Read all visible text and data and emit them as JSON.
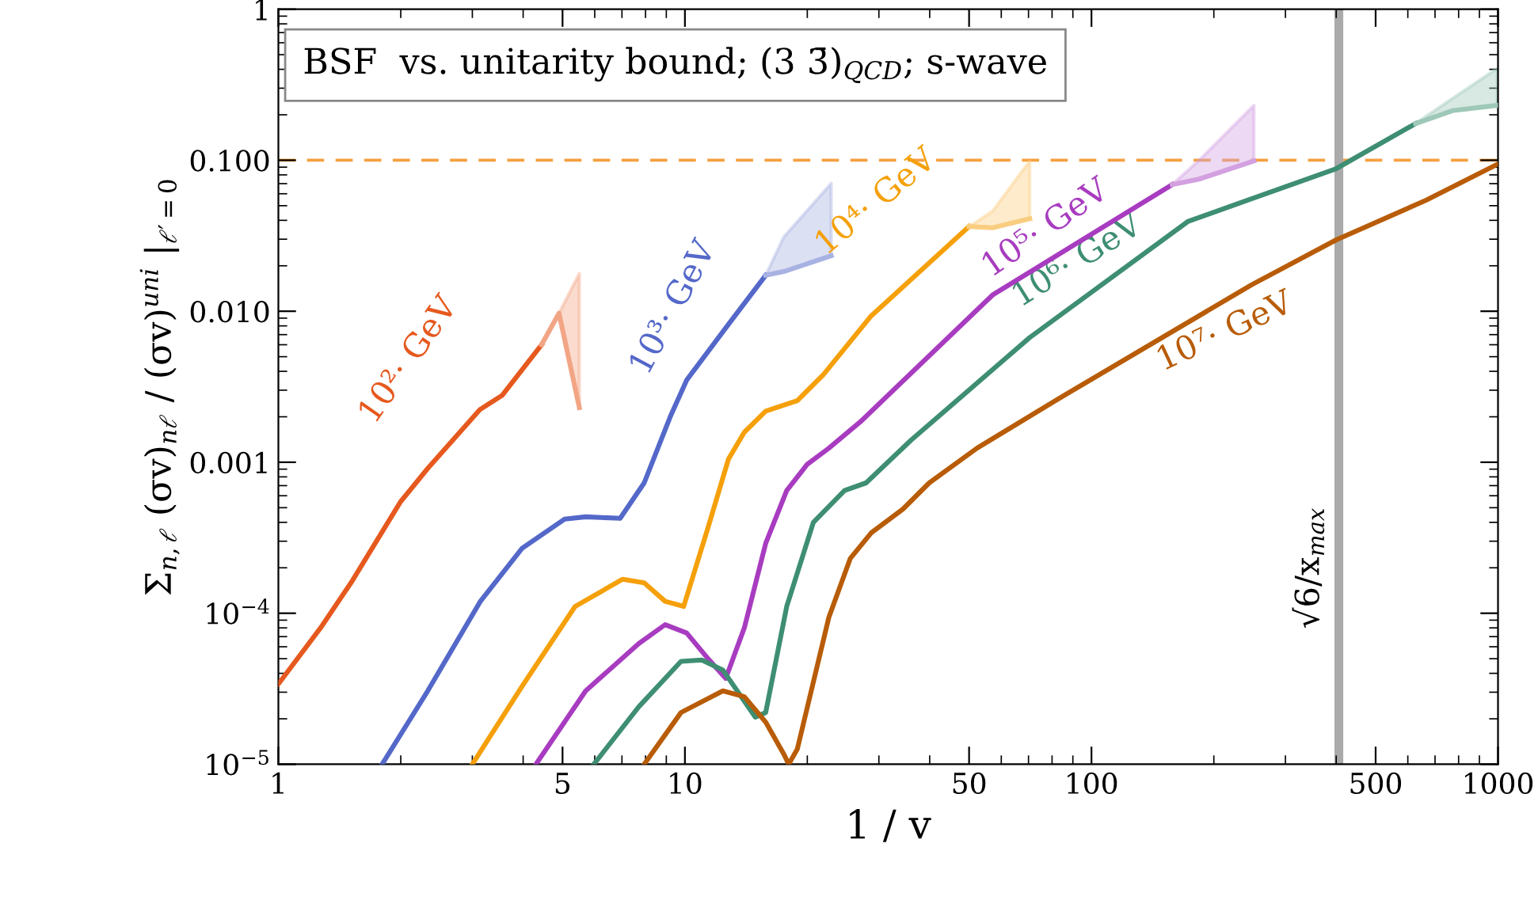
{
  "chart_data": {
    "type": "line",
    "title": "BSF  vs. unitarity bound; (3 3̄)$_{QCD}$; s-wave",
    "xlabel": "1 / v",
    "ylabel": "Σ$_{n,ℓ}$ (σv)$_{nℓ}$ / (σv)$^{uni}$ |$_{ℓ′=0}$",
    "log": "xy",
    "xlim": [
      1,
      1000
    ],
    "ylim": [
      1e-05,
      1
    ],
    "xticks": [
      1,
      5,
      10,
      50,
      100,
      500,
      1000
    ],
    "yticks": [
      {
        "value": 1e-05,
        "label": "10$^{−5}$"
      },
      {
        "value": 0.0001,
        "label": "10$^{−4}$"
      },
      {
        "value": 0.001,
        "label": "0.001"
      },
      {
        "value": 0.01,
        "label": "0.010"
      },
      {
        "value": 0.1,
        "label": "0.100"
      },
      1
    ],
    "grid": false,
    "legend": false,
    "series": [
      {
        "name": "10²· GeV",
        "color": "#e6591e",
        "x": [
          1,
          1.27,
          1.52,
          2.0,
          2.33,
          3.13,
          3.55,
          4.44
        ],
        "values": [
          3.4e-05,
          8e-05,
          0.000164,
          0.00055,
          0.00091,
          0.00223,
          0.00277,
          0.006
        ]
      },
      {
        "name": "10³· GeV",
        "color": "#5468c9",
        "x": [
          1.8,
          2.33,
          3.14,
          3.98,
          5.06,
          5.7,
          6.93,
          7.94,
          9.2,
          10.1,
          12.8,
          15.8
        ],
        "values": [
          1e-05,
          3.06e-05,
          0.00012,
          0.00027,
          0.00042,
          0.000435,
          0.000425,
          0.00073,
          0.002,
          0.0035,
          0.0082,
          0.0173
        ]
      },
      {
        "name": "10⁴· GeV",
        "color": "#f5a00a",
        "x": [
          3.0,
          3.98,
          5.37,
          7.03,
          7.94,
          8.94,
          9.93,
          11.4,
          12.8,
          14.0,
          15.8,
          18.9,
          21.9,
          28.7,
          50
        ],
        "values": [
          1e-05,
          3.3e-05,
          0.000111,
          0.000168,
          0.000159,
          0.00012,
          0.000111,
          0.00037,
          0.00105,
          0.00158,
          0.00218,
          0.00256,
          0.0038,
          0.0093,
          0.0364
        ]
      },
      {
        "name": "10⁵· GeV",
        "color": "#a83cc0",
        "x": [
          4.3,
          5.7,
          7.7,
          8.94,
          10.1,
          11.4,
          12.6,
          14.0,
          15.8,
          17.8,
          20.0,
          22.6,
          27.0,
          57.1,
          158
        ],
        "values": [
          1e-05,
          3.06e-05,
          6.3e-05,
          8.4e-05,
          7.4e-05,
          5e-05,
          3.7e-05,
          8e-05,
          0.00029,
          0.00065,
          0.00097,
          0.00124,
          0.00185,
          0.0128,
          0.069
        ]
      },
      {
        "name": "10⁶· GeV",
        "color": "#3e8e72",
        "x": [
          5.97,
          7.7,
          9.78,
          11.0,
          12.4,
          14.9,
          15.8,
          17.8,
          20.7,
          24.7,
          27.9,
          36,
          70.5,
          173,
          400,
          627
        ],
        "values": [
          1e-05,
          2.4e-05,
          4.8e-05,
          4.9e-05,
          4.2e-05,
          2.05e-05,
          2.2e-05,
          0.000111,
          0.0004,
          0.00065,
          0.00073,
          0.0014,
          0.0067,
          0.0394,
          0.088,
          0.175
        ]
      },
      {
        "name": "10⁷· GeV",
        "color": "#b85c08",
        "x": [
          7.94,
          9.78,
          12.4,
          14.0,
          15.8,
          17.5,
          18.0,
          18.9,
          22.6,
          25.5,
          28.7,
          34.4,
          39.9,
          52.3,
          85.6,
          248,
          400,
          665,
          996
        ],
        "values": [
          1e-05,
          2.2e-05,
          3.06e-05,
          2.8e-05,
          1.9e-05,
          1.17e-05,
          1e-05,
          1.26e-05,
          9.4e-05,
          0.00023,
          0.00034,
          0.00049,
          0.00073,
          0.00124,
          0.00277,
          0.015,
          0.0297,
          0.0543,
          0.094
        ]
      },
      {
        "color": "#f2a585",
        "x": [
          4.44,
          4.9,
          5.5
        ],
        "values": [
          0.006,
          0.0097,
          0.0023
        ],
        "lower": [
          0.006,
          0.0097,
          0.0023
        ],
        "upper": [
          0.006,
          0.0097,
          0.0178
        ]
      },
      {
        "color": "#a8b2e2",
        "x": [
          15.8,
          17.5,
          22.9
        ],
        "values": [
          0.0173,
          0.0183,
          0.0233
        ],
        "lower": [
          0.0173,
          0.0183,
          0.0233
        ],
        "upper": [
          0.0173,
          0.031,
          0.0703
        ]
      },
      {
        "color": "#f9cd80",
        "x": [
          50,
          57.1,
          70.5
        ],
        "values": [
          0.0364,
          0.0357,
          0.041
        ],
        "lower": [
          0.0364,
          0.0357,
          0.041
        ],
        "upper": [
          0.0364,
          0.046,
          0.099
        ]
      },
      {
        "color": "#d3a0e0",
        "x": [
          158,
          184,
          251
        ],
        "values": [
          0.069,
          0.075,
          0.099
        ],
        "lower": [
          0.069,
          0.075,
          0.099
        ],
        "upper": [
          0.069,
          0.1,
          0.231
        ]
      },
      {
        "color": "#9ec8b8",
        "x": [
          627,
          772,
          996
        ],
        "values": [
          0.175,
          0.213,
          0.231
        ],
        "lower": [
          0.175,
          0.213,
          0.231
        ],
        "upper": [
          0.175,
          0.256,
          0.406
        ]
      }
    ],
    "ref_lines": [
      {
        "axis": "y",
        "value": 0.1,
        "color": "#f5a040",
        "line_style": "dashed"
      },
      {
        "axis": "x",
        "value": 406,
        "color": "#aaaaaa",
        "line_style": "solid",
        "label": "√6/x$_{max}$"
      }
    ]
  }
}
